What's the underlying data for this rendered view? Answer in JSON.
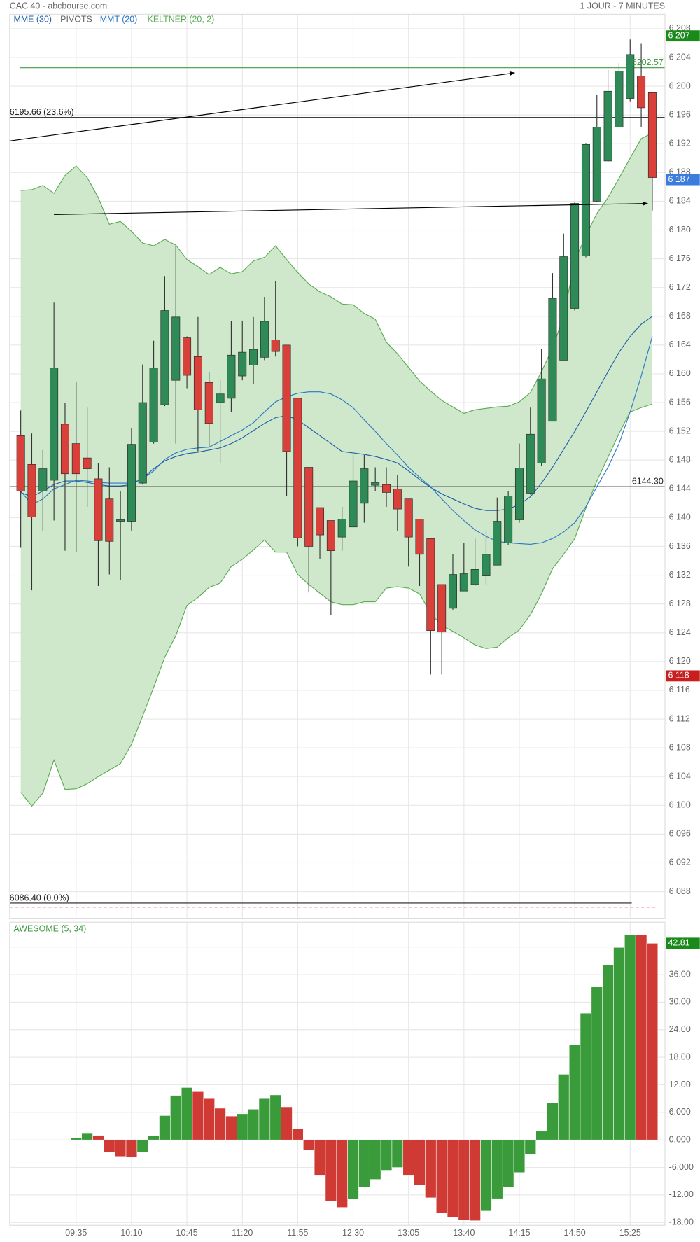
{
  "header": {
    "title": "CAC 40 - abcbourse.com",
    "period": "1 JOUR - 7 MINUTES"
  },
  "chart_data": [
    {
      "type": "candlestick",
      "categories": [
        null,
        null,
        null,
        null,
        null,
        "09:35",
        null,
        null,
        null,
        null,
        "10:10",
        null,
        null,
        null,
        null,
        "10:45",
        null,
        null,
        null,
        null,
        "11:20",
        null,
        null,
        null,
        null,
        "11:55",
        null,
        null,
        null,
        null,
        "12:30",
        null,
        null,
        null,
        null,
        "13:05",
        null,
        null,
        null,
        null,
        "13:40",
        null,
        null,
        null,
        null,
        "14:15",
        null,
        null,
        null,
        null,
        "14:50",
        null,
        null,
        null,
        null,
        "15:25",
        null,
        null
      ],
      "open": [
        6151.4,
        6147.4,
        6143.7,
        6145.2,
        6153.0,
        6150.3,
        6148.3,
        6145.4,
        6142.6,
        6139.5,
        6139.5,
        6144.8,
        6150.5,
        6155.7,
        6159.1,
        6165.0,
        6162.4,
        6158.8,
        6156.0,
        6156.6,
        6159.7,
        6161.2,
        6162.3,
        6164.7,
        6164.0,
        6156.6,
        6147.0,
        6141.4,
        6139.6,
        6137.3,
        6138.7,
        6142.0,
        6144.5,
        6144.6,
        6144.0,
        6142.6,
        6139.8,
        6137.1,
        6130.7,
        6127.4,
        6129.8,
        6130.7,
        6131.9,
        6133.4,
        6136.5,
        6139.7,
        6143.4,
        6147.6,
        6153.4,
        6161.9,
        6169.1,
        6176.4,
        6184.0,
        6189.6,
        6194.3,
        6198.3,
        6201.4,
        6199.1
      ],
      "high": [
        6154.9,
        6151.7,
        6149.4,
        6169.9,
        6156.0,
        6158.9,
        6155.3,
        6147.6,
        6147.0,
        6143.7,
        6152.5,
        6161.3,
        6164.6,
        6173.6,
        6177.8,
        6165.2,
        6167.9,
        6160.2,
        6159.1,
        6167.4,
        6167.4,
        6167.9,
        6170.7,
        6172.9,
        6164.0,
        6156.6,
        6147.0,
        6141.4,
        6139.6,
        6141.5,
        6148.7,
        6148.7,
        6147.0,
        6147.0,
        6145.9,
        6142.6,
        6139.8,
        6137.1,
        6130.7,
        6134.9,
        6136.5,
        6137.1,
        6138.2,
        6142.8,
        6143.7,
        6150.3,
        6155.3,
        6163.5,
        6174.0,
        6179.5,
        6183.9,
        6192.1,
        6198.8,
        6202.3,
        6203.2,
        6206.5,
        6205.9,
        6199.1
      ],
      "low": [
        6135.8,
        6129.9,
        6138.2,
        6139.6,
        6135.4,
        6135.2,
        6141.5,
        6130.5,
        6132.1,
        6131.3,
        6138.2,
        6144.6,
        6150.3,
        6155.5,
        6150.3,
        6158.0,
        6149.2,
        6149.8,
        6147.6,
        6154.7,
        6159.1,
        6158.6,
        6161.9,
        6162.4,
        6143.0,
        6136.0,
        6129.6,
        6134.3,
        6126.5,
        6135.4,
        6138.7,
        6139.3,
        6143.7,
        6141.5,
        6138.2,
        6133.2,
        6130.5,
        6118.2,
        6118.2,
        6127.2,
        6129.8,
        6130.5,
        6130.7,
        6133.4,
        6136.2,
        6139.3,
        6143.2,
        6147.2,
        6153.4,
        6161.9,
        6168.8,
        6176.2,
        6183.9,
        6189.4,
        6194.3,
        6197.9,
        6194.3,
        6182.7
      ],
      "close": [
        6143.7,
        6140.1,
        6146.8,
        6160.8,
        6146.1,
        6146.1,
        6146.8,
        6136.8,
        6136.7,
        6139.7,
        6150.2,
        6156.0,
        6160.8,
        6168.8,
        6167.9,
        6159.8,
        6155.0,
        6153.1,
        6157.2,
        6162.6,
        6163.0,
        6163.4,
        6167.3,
        6163.1,
        6149.2,
        6137.2,
        6136.0,
        6137.6,
        6135.4,
        6139.8,
        6145.1,
        6146.8,
        6144.9,
        6143.5,
        6141.2,
        6137.3,
        6134.9,
        6124.3,
        6124.1,
        6132.1,
        6132.2,
        6132.8,
        6134.9,
        6139.5,
        6143.0,
        6146.9,
        6151.6,
        6159.3,
        6170.5,
        6176.3,
        6183.7,
        6191.9,
        6194.3,
        6199.3,
        6202.1,
        6204.4,
        6197.0,
        6187.3
      ],
      "up_color": "#2e8b57",
      "down_color": "#d9403a",
      "series": [
        {
          "name": "MME (30)",
          "color": "#1e5fa8",
          "values": [
            6143.5,
            6142.9,
            6143.7,
            6144.6,
            6145.1,
            6145.1,
            6144.9,
            6144.6,
            6144.4,
            6144.4,
            6144.6,
            6145.5,
            6146.8,
            6147.9,
            6148.5,
            6148.9,
            6149.1,
            6149.4,
            6149.7,
            6150.3,
            6151.1,
            6152.1,
            6153.1,
            6153.9,
            6154.2,
            6153.6,
            6152.5,
            6151.4,
            6150.3,
            6149.2,
            6149.0,
            6148.8,
            6148.5,
            6148.1,
            6147.6,
            6146.5,
            6145.3,
            6144.2,
            6143.3,
            6142.6,
            6141.9,
            6141.3,
            6141.0,
            6141.0,
            6141.2,
            6141.8,
            6142.9,
            6144.8,
            6147.0,
            6149.5,
            6152.0,
            6154.7,
            6157.5,
            6160.3,
            6163.0,
            6165.2,
            6166.9,
            6168.0
          ]
        },
        {
          "name": "MMT (20)",
          "color": "#2a78c8",
          "values": [
            6143.7,
            6141.8,
            6142.6,
            6144.0,
            6144.6,
            6145.2,
            6145.1,
            6144.9,
            6144.8,
            6144.8,
            6144.8,
            6145.4,
            6146.5,
            6148.1,
            6149.0,
            6149.5,
            6149.7,
            6149.8,
            6150.6,
            6151.4,
            6152.2,
            6153.2,
            6154.7,
            6156.1,
            6156.8,
            6157.3,
            6157.5,
            6157.5,
            6157.2,
            6156.4,
            6155.3,
            6153.6,
            6152.0,
            6150.3,
            6148.7,
            6147.0,
            6145.6,
            6144.3,
            6142.6,
            6141.0,
            6139.6,
            6138.3,
            6137.4,
            6136.7,
            6136.5,
            6136.4,
            6136.3,
            6136.5,
            6137.1,
            6138.0,
            6139.3,
            6141.5,
            6144.3,
            6147.0,
            6150.3,
            6154.7,
            6159.7,
            6165.2
          ]
        }
      ],
      "pivots_label": "PIVOTS",
      "keltner": {
        "name": "KELTNER (20, 2)",
        "color": "#5aab52",
        "fill": "#cfe8cb",
        "upper": [
          6185.5,
          6185.6,
          6186.2,
          6185.1,
          6187.6,
          6188.9,
          6187.3,
          6184.5,
          6180.8,
          6181.2,
          6179.8,
          6178.2,
          6177.8,
          6178.7,
          6177.9,
          6175.9,
          6174.9,
          6173.8,
          6174.8,
          6173.9,
          6174.2,
          6175.7,
          6176.2,
          6177.8,
          6175.9,
          6174.1,
          6172.5,
          6171.4,
          6170.7,
          6169.7,
          6169.6,
          6168.4,
          6167.6,
          6164.4,
          6162.8,
          6160.9,
          6159.0,
          6157.6,
          6156.3,
          6155.4,
          6154.5,
          6155.0,
          6155.2,
          6155.4,
          6155.5,
          6156.1,
          6157.4,
          6160.3,
          6163.6,
          6168.0,
          6175.7,
          6179.2,
          6182.3,
          6184.5,
          6187.2,
          6190.0,
          6192.7,
          6193.5
        ],
        "lower": [
          6101.8,
          6099.9,
          6101.7,
          6106.3,
          6102.2,
          6102.3,
          6103.0,
          6104.0,
          6104.9,
          6105.8,
          6108.5,
          6112.4,
          6116.4,
          6120.6,
          6123.6,
          6127.8,
          6128.9,
          6130.3,
          6130.9,
          6133.2,
          6134.2,
          6135.5,
          6136.9,
          6135.2,
          6135.2,
          6132.1,
          6130.7,
          6129.5,
          6128.3,
          6127.9,
          6127.9,
          6128.3,
          6128.3,
          6130.2,
          6130.4,
          6130.2,
          6129.4,
          6126.7,
          6125.0,
          6124.2,
          6123.3,
          6122.3,
          6121.8,
          6122.0,
          6123.3,
          6124.4,
          6126.5,
          6129.4,
          6132.9,
          6134.9,
          6137.1,
          6141.3,
          6145.1,
          6148.4,
          6151.7,
          6154.7,
          6155.3,
          6155.8
        ]
      },
      "levels": [
        {
          "value": 6202.57,
          "label": "6202.57",
          "color": "#3f9b3f"
        },
        {
          "value": 6195.66,
          "label": "6195.66  (23.6%)",
          "color": "#222222"
        },
        {
          "value": 6144.3,
          "label": "6144.30",
          "color": "#222222"
        },
        {
          "value": 6086.4,
          "label": "6086.40  (0.0%)",
          "color": "#222222"
        }
      ],
      "badges": [
        {
          "value": 6207,
          "label": "6 207",
          "color": "#1a8a1a"
        },
        {
          "value": 6187,
          "label": "6 187",
          "color": "#3b7ddd"
        },
        {
          "value": 6118,
          "label": "6 118",
          "color": "#c81e1e"
        }
      ],
      "ylim": [
        6084.3,
        6210
      ],
      "yticks": [
        {
          "value": 6088,
          "label": "6 088"
        },
        {
          "value": 6092,
          "label": "6 092"
        },
        {
          "value": 6096,
          "label": "6 096"
        },
        {
          "value": 6100,
          "label": "6 100"
        },
        {
          "value": 6104,
          "label": "6 104"
        },
        {
          "value": 6108,
          "label": "6 108"
        },
        {
          "value": 6112,
          "label": "6 112"
        },
        {
          "value": 6116,
          "label": "6 116"
        },
        {
          "value": 6120,
          "label": "6 120"
        },
        {
          "value": 6124,
          "label": "6 124"
        },
        {
          "value": 6128,
          "label": "6 128"
        },
        {
          "value": 6132,
          "label": "6 132"
        },
        {
          "value": 6136,
          "label": "6 136"
        },
        {
          "value": 6140,
          "label": "6 140"
        },
        {
          "value": 6144,
          "label": "6 144"
        },
        {
          "value": 6148,
          "label": "6 148"
        },
        {
          "value": 6152,
          "label": "6 152"
        },
        {
          "value": 6156,
          "label": "6 156"
        },
        {
          "value": 6160,
          "label": "6 160"
        },
        {
          "value": 6164,
          "label": "6 164"
        },
        {
          "value": 6168,
          "label": "6 168"
        },
        {
          "value": 6172,
          "label": "6 172"
        },
        {
          "value": 6176,
          "label": "6 176"
        },
        {
          "value": 6180,
          "label": "6 180"
        },
        {
          "value": 6184,
          "label": "6 184"
        },
        {
          "value": 6188,
          "label": "6 188"
        },
        {
          "value": 6192,
          "label": "6 192"
        },
        {
          "value": 6196,
          "label": "6 196"
        },
        {
          "value": 6200,
          "label": "6 200"
        },
        {
          "value": 6204,
          "label": "6 204"
        },
        {
          "value": 6208,
          "label": "6 208"
        }
      ],
      "grid": true
    },
    {
      "type": "bar",
      "title": "AWESOME (5, 34)",
      "title_color": "#3a9b3a",
      "values": [
        null,
        null,
        null,
        null,
        null,
        0.4,
        1.4,
        1.0,
        -2.6,
        -3.6,
        -3.8,
        -2.6,
        0.9,
        5.3,
        9.7,
        11.4,
        10.5,
        9.0,
        6.9,
        5.2,
        5.7,
        6.7,
        9.0,
        9.8,
        7.2,
        2.4,
        -2.2,
        -7.8,
        -13.3,
        -14.7,
        -12.9,
        -10.3,
        -8.6,
        -6.6,
        -6.0,
        -7.8,
        -9.8,
        -12.6,
        -15.9,
        -16.9,
        -17.4,
        -17.6,
        -15.5,
        -12.8,
        -10.3,
        -7.1,
        -3.1,
        1.9,
        8.1,
        14.3,
        20.7,
        27.6,
        33.3,
        38.1,
        41.9,
        44.7,
        44.6,
        42.81
      ],
      "up_color": "#3a9b3a",
      "down_color": "#d03a35",
      "badges": [
        {
          "value": 42.81,
          "label": "42.81",
          "color": "#1a8a1a"
        }
      ],
      "ylim": [
        -18.6,
        47.4
      ],
      "yticks": [
        {
          "value": -18,
          "label": "-18.00"
        },
        {
          "value": -12,
          "label": "-12.00"
        },
        {
          "value": -6,
          "label": "-6.000"
        },
        {
          "value": 0,
          "label": "0.000"
        },
        {
          "value": 6,
          "label": "6.000"
        },
        {
          "value": 12,
          "label": "12.00"
        },
        {
          "value": 18,
          "label": "18.00"
        },
        {
          "value": 24,
          "label": "24.00"
        },
        {
          "value": 30,
          "label": "30.00"
        },
        {
          "value": 36,
          "label": "36.00"
        },
        {
          "value": 42,
          "label": "42.00"
        }
      ],
      "grid": true
    }
  ]
}
